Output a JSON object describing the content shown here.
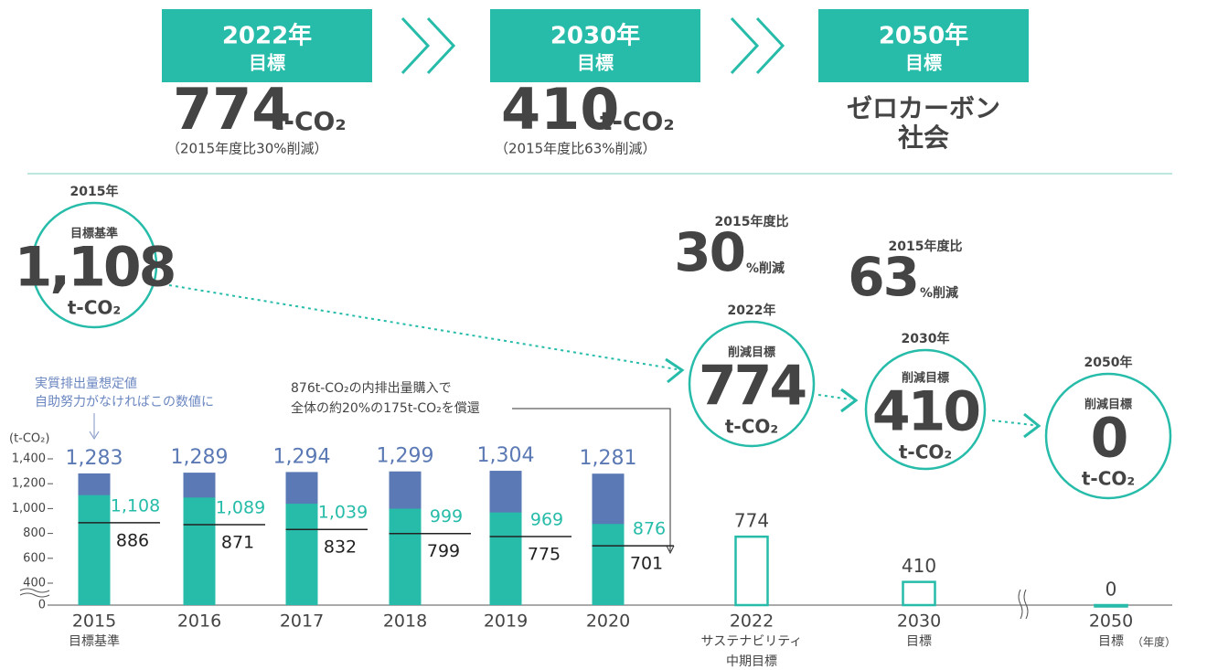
{
  "targets": [
    {
      "year": "2022年",
      "label": "目標",
      "value": "774",
      "unit": "t-CO₂",
      "note": "（2015年度比30%削減）"
    },
    {
      "year": "2030年",
      "label": "目標",
      "value": "410",
      "unit": "t-CO₂",
      "note": "（2015年度比63%削減）"
    },
    {
      "year": "2050年",
      "label": "目標",
      "lines": [
        "ゼロカーボン",
        "社会"
      ]
    }
  ],
  "chart_data": {
    "type": "bar",
    "y_label": "(t-CO₂)",
    "x_unit": "（年度）",
    "categories": [
      "2015",
      "2016",
      "2017",
      "2018",
      "2019",
      "2020",
      "2022",
      "2030",
      "2050"
    ],
    "category_notes": [
      [
        "目標基準"
      ],
      null,
      null,
      null,
      null,
      null,
      [
        "サステナビリティ",
        "中期目標"
      ],
      [
        "目標"
      ],
      [
        "目標"
      ]
    ],
    "ylim": [
      0,
      1400
    ],
    "yticks": [
      0,
      400,
      600,
      800,
      {
        "value": 1000,
        "label": "1,000"
      },
      {
        "value": 1200,
        "label": "1,200"
      },
      {
        "value": 1400,
        "label": "1,400"
      }
    ],
    "series": [
      {
        "color": "#5b79b4",
        "values": [
          1283,
          1289,
          1294,
          1299,
          1304,
          1281,
          null,
          null,
          null
        ],
        "value_labels": [
          "1,283",
          "1,289",
          "1,294",
          "1,299",
          "1,304",
          "1,281",
          null,
          null,
          null
        ]
      },
      {
        "color": "#26bca9",
        "values": [
          1108,
          1089,
          1039,
          999,
          969,
          876,
          null,
          null,
          null
        ],
        "value_labels": [
          "1,108",
          "1,089",
          "1,039",
          "999",
          "969",
          "876",
          null,
          null,
          null
        ]
      },
      {
        "color": "#222222",
        "values": [
          886,
          871,
          832,
          799,
          775,
          701,
          null,
          null,
          null
        ]
      },
      {
        "color": "#26bca9",
        "values": [
          null,
          null,
          null,
          null,
          null,
          null,
          774,
          410,
          0
        ]
      }
    ],
    "legend_note": [
      "実質排出量想定値",
      "自助努力がなければこの数値に"
    ],
    "offset_note": [
      "876t-CO₂の内排出量購入で",
      "全体の約20%の175t-CO₂を償還"
    ],
    "circles": [
      {
        "year": "2015年",
        "label": "目標基準",
        "value": "1,108",
        "unit": "t-CO₂"
      },
      {
        "year": "2022年",
        "label": "削減目標",
        "value": "774",
        "unit": "t-CO₂"
      },
      {
        "year": "2030年",
        "label": "削減目標",
        "value": "410",
        "unit": "t-CO₂"
      },
      {
        "year": "2050年",
        "label": "削減目標",
        "value": "0",
        "unit": "t-CO₂"
      }
    ],
    "reductions": [
      {
        "base": "2015年度比",
        "value": "30",
        "unit": "%削減"
      },
      {
        "base": "2015年度比",
        "value": "63",
        "unit": "%削減"
      }
    ]
  }
}
